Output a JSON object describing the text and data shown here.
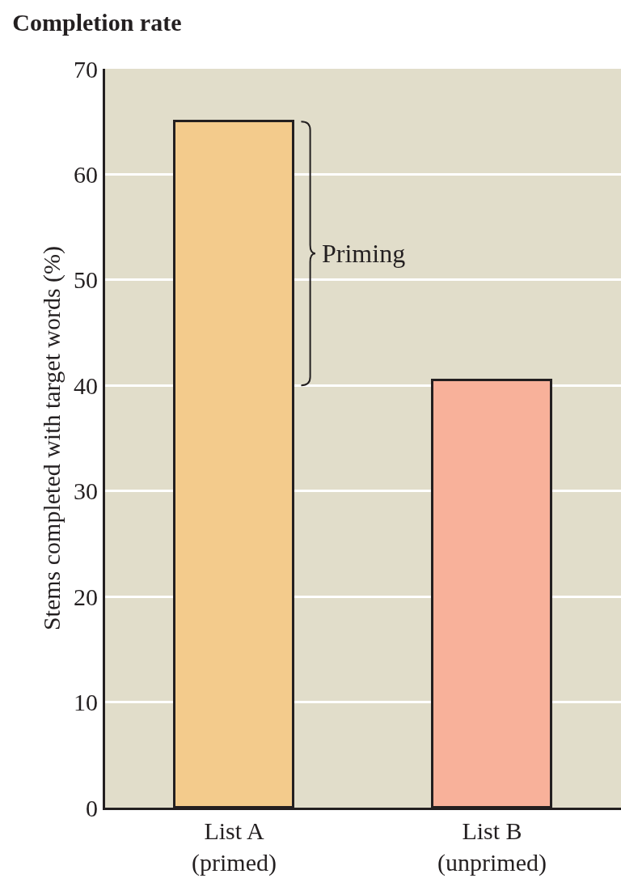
{
  "chart_data": {
    "type": "bar",
    "title": "Completion rate",
    "ylabel": "Stems completed with target words (%)",
    "categories": [
      "List A\n(primed)",
      "List B\n(unprimed)"
    ],
    "values": [
      65,
      40.5
    ],
    "colors": [
      "#f3cb8c",
      "#f8b19a"
    ],
    "ylim": [
      0,
      70
    ],
    "yticks": [
      0,
      10,
      20,
      30,
      40,
      50,
      60,
      70
    ],
    "grid": "y",
    "annotations": [
      "Priming"
    ]
  }
}
